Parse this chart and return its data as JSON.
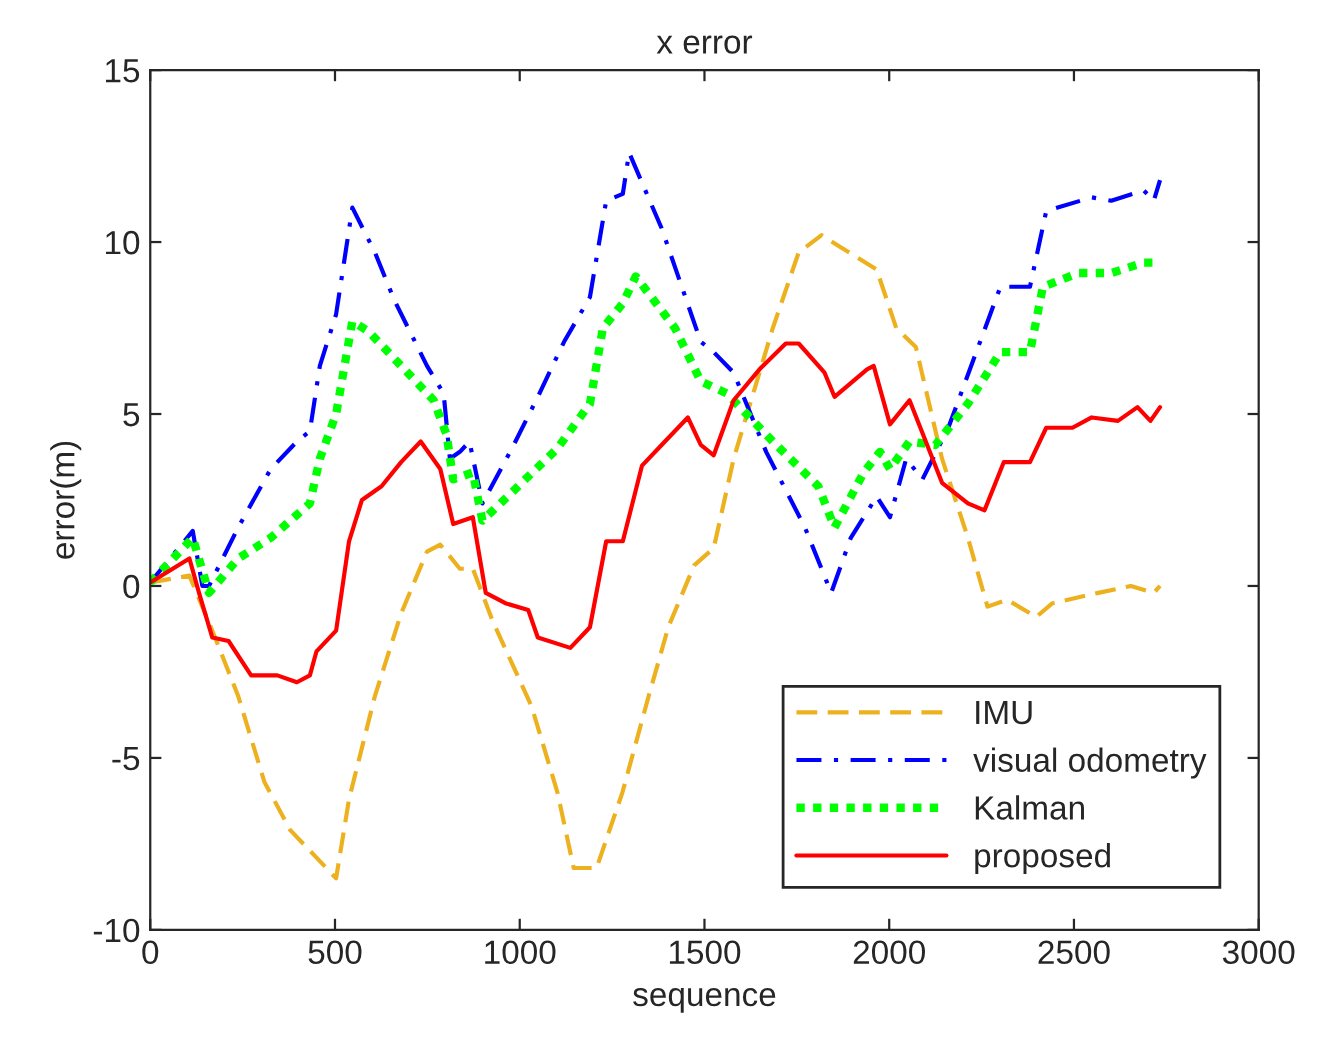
{
  "chart_data": {
    "type": "line",
    "title": "x error",
    "xlabel": "sequence",
    "ylabel": "error(m)",
    "xlim": [
      0,
      3000
    ],
    "xticks": [
      0,
      500,
      1000,
      1500,
      2000,
      2500,
      3000
    ],
    "ylim": [
      -10,
      15
    ],
    "yticks": [
      -10,
      -5,
      0,
      5,
      10,
      15
    ],
    "grid": false,
    "legend": "bottom right",
    "series": [
      {
        "name": "IMU",
        "color": "#edb120",
        "line_style": "dashed",
        "x": [
          0,
          106,
          168,
          238,
          309,
          379,
          450,
          503,
          538,
          608,
          679,
          749,
          785,
          838,
          873,
          926,
          1032,
          1102,
          1146,
          1208,
          1278,
          1349,
          1402,
          1472,
          1525,
          1579,
          1685,
          1755,
          1817,
          1861,
          1966,
          2019,
          2072,
          2143,
          2213,
          2266,
          2319,
          2398,
          2442,
          2566,
          2654,
          2716,
          2733
        ],
        "values": [
          0.1,
          0.3,
          -1.3,
          -3.2,
          -5.7,
          -7.1,
          -7.9,
          -8.5,
          -6.2,
          -3.2,
          -0.8,
          1.0,
          1.2,
          0.5,
          0.5,
          -1.0,
          -3.5,
          -6.0,
          -8.2,
          -8.2,
          -6.0,
          -3.2,
          -1.2,
          0.6,
          1.1,
          3.7,
          7.5,
          9.7,
          10.2,
          9.9,
          9.2,
          7.5,
          6.95,
          3.7,
          1.4,
          -0.6,
          -0.4,
          -0.9,
          -0.5,
          -0.2,
          0.0,
          -0.2,
          0.0
        ]
      },
      {
        "name": "visual odometry",
        "color": "#0000ff",
        "line_style": "dashdot",
        "x": [
          0,
          115,
          141,
          159,
          238,
          326,
          397,
          432,
          459,
          503,
          547,
          608,
          661,
          749,
          794,
          811,
          838,
          864,
          899,
          979,
          1049,
          1120,
          1190,
          1234,
          1279,
          1296,
          1384,
          1490,
          1525,
          1579,
          1667,
          1772,
          1843,
          1896,
          1966,
          2002,
          2046,
          2090,
          2160,
          2301,
          2381,
          2425,
          2548,
          2601,
          2689,
          2716,
          2733
        ],
        "values": [
          0.1,
          1.6,
          0.0,
          0.0,
          1.7,
          3.4,
          4.2,
          4.5,
          6.4,
          7.9,
          11.0,
          9.7,
          8.3,
          6.4,
          5.6,
          3.7,
          3.9,
          4.2,
          2.4,
          4.0,
          5.5,
          7.1,
          8.4,
          11.2,
          11.4,
          12.6,
          10.4,
          7.1,
          6.8,
          6.2,
          3.9,
          1.7,
          -0.2,
          1.4,
          2.6,
          2.0,
          3.7,
          3.1,
          4.6,
          8.7,
          8.7,
          10.9,
          11.3,
          11.2,
          11.5,
          11.2,
          11.8
        ]
      },
      {
        "name": "Kalman",
        "color": "#00ff00",
        "line_style": "dotted",
        "x": [
          0,
          115,
          159,
          238,
          326,
          432,
          459,
          503,
          547,
          591,
          679,
          767,
          802,
          820,
          873,
          899,
          996,
          1102,
          1190,
          1225,
          1278,
          1314,
          1420,
          1490,
          1560,
          1614,
          1685,
          1808,
          1852,
          1931,
          1975,
          2002,
          2055,
          2125,
          2213,
          2301,
          2381,
          2416,
          2513,
          2601,
          2689,
          2733
        ],
        "values": [
          0.1,
          1.4,
          -0.2,
          0.8,
          1.4,
          2.4,
          3.7,
          5.0,
          7.7,
          7.4,
          6.4,
          5.4,
          4.4,
          3.1,
          3.3,
          1.9,
          2.9,
          4.0,
          5.3,
          7.5,
          8.2,
          9.0,
          7.5,
          5.95,
          5.6,
          5.0,
          4.2,
          2.9,
          1.7,
          3.3,
          3.9,
          3.4,
          4.2,
          4.1,
          5.3,
          6.8,
          6.8,
          8.7,
          9.1,
          9.1,
          9.4,
          9.4
        ]
      },
      {
        "name": "proposed",
        "color": "#ff0000",
        "line_style": "solid",
        "x": [
          0,
          106,
          132,
          168,
          212,
          273,
          344,
          397,
          432,
          450,
          503,
          538,
          573,
          626,
          679,
          732,
          785,
          820,
          873,
          908,
          961,
          1023,
          1049,
          1137,
          1190,
          1234,
          1279,
          1331,
          1384,
          1455,
          1490,
          1525,
          1579,
          1649,
          1720,
          1755,
          1825,
          1852,
          1940,
          1958,
          2002,
          2055,
          2143,
          2213,
          2258,
          2310,
          2381,
          2425,
          2496,
          2548,
          2619,
          2672,
          2707,
          2733
        ],
        "values": [
          0.1,
          0.8,
          -0.2,
          -1.5,
          -1.6,
          -2.6,
          -2.6,
          -2.8,
          -2.6,
          -1.9,
          -1.3,
          1.3,
          2.5,
          2.9,
          3.6,
          4.2,
          3.4,
          1.8,
          2.0,
          -0.2,
          -0.5,
          -0.7,
          -1.5,
          -1.8,
          -1.2,
          1.3,
          1.3,
          3.5,
          4.1,
          4.9,
          4.1,
          3.8,
          5.4,
          6.3,
          7.05,
          7.05,
          6.2,
          5.5,
          6.3,
          6.4,
          4.7,
          5.4,
          3.0,
          2.4,
          2.2,
          3.6,
          3.6,
          4.6,
          4.6,
          4.9,
          4.8,
          5.2,
          4.8,
          5.2
        ]
      }
    ]
  }
}
